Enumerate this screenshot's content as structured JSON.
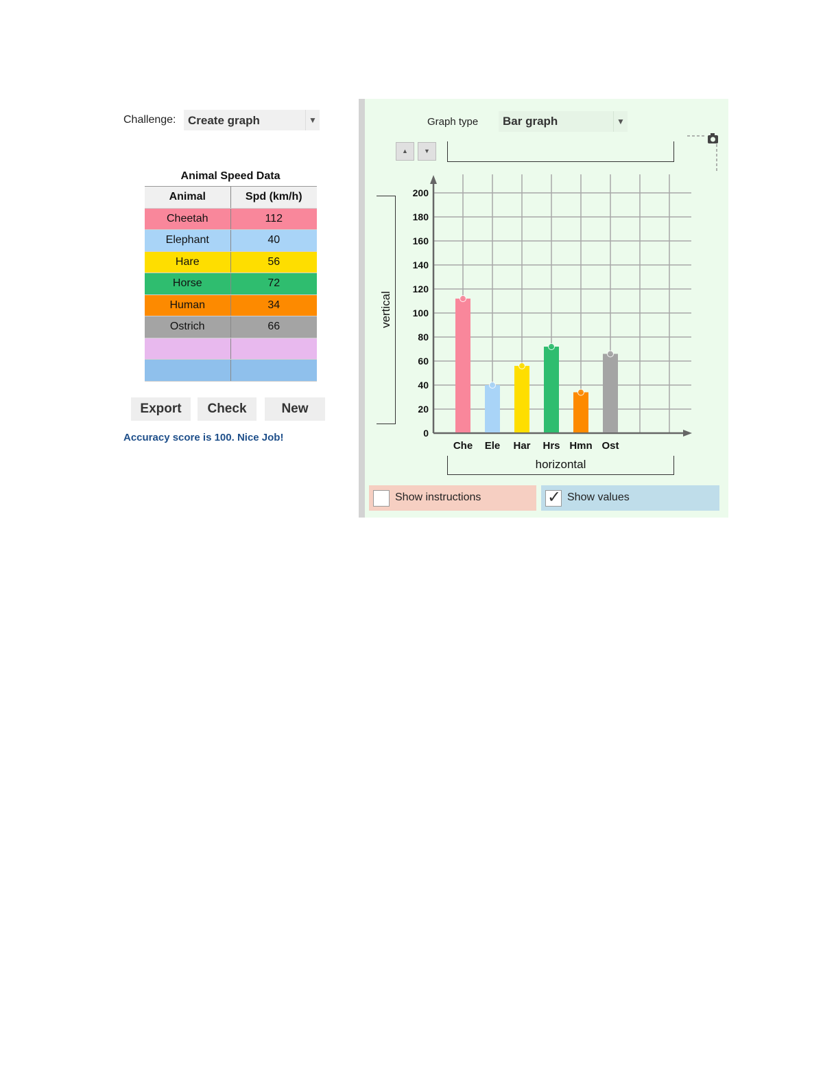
{
  "challenge": {
    "label": "Challenge:",
    "value": "Create graph"
  },
  "table": {
    "title": "Animal Speed Data",
    "headers": [
      "Animal",
      "Spd (km/h)"
    ],
    "rows": [
      {
        "animal": "Cheetah",
        "speed": "112",
        "color": "#f9879b"
      },
      {
        "animal": "Elephant",
        "speed": "40",
        "color": "#a9d4f7"
      },
      {
        "animal": "Hare",
        "speed": "56",
        "color": "#fede00"
      },
      {
        "animal": "Horse",
        "speed": "72",
        "color": "#2fbd6f"
      },
      {
        "animal": "Human",
        "speed": "34",
        "color": "#fd8a00"
      },
      {
        "animal": "Ostrich",
        "speed": "66",
        "color": "#a4a4a4"
      },
      {
        "animal": "",
        "speed": "",
        "color": "#e8b9ee"
      },
      {
        "animal": "",
        "speed": "",
        "color": "#8fc0ec"
      }
    ]
  },
  "buttons": {
    "export": "Export",
    "check": "Check",
    "new": "New"
  },
  "accuracy": "Accuracy score is 100. Nice Job!",
  "graph_type": {
    "label": "Graph type",
    "value": "Bar graph"
  },
  "axis_labels": {
    "vertical": "vertical",
    "horizontal": "horizontal"
  },
  "checkboxes": {
    "show_instructions": {
      "label": "Show instructions",
      "checked": false,
      "bg": "#f6cfc2"
    },
    "show_values": {
      "label": "Show values",
      "checked": true,
      "bg": "#bfddea"
    }
  },
  "chart_data": {
    "type": "bar",
    "categories": [
      "Che",
      "Ele",
      "Har",
      "Hrs",
      "Hmn",
      "Ost"
    ],
    "values": [
      112,
      40,
      56,
      72,
      34,
      66
    ],
    "colors": [
      "#f9879b",
      "#a9d4f7",
      "#fede00",
      "#2fbd6f",
      "#fd8a00",
      "#a4a4a4"
    ],
    "yticks": [
      0,
      20,
      40,
      60,
      80,
      100,
      120,
      140,
      160,
      180,
      200
    ],
    "ylim": [
      0,
      200
    ],
    "grid": true,
    "title": "",
    "xlabel": "horizontal",
    "ylabel": "vertical"
  }
}
